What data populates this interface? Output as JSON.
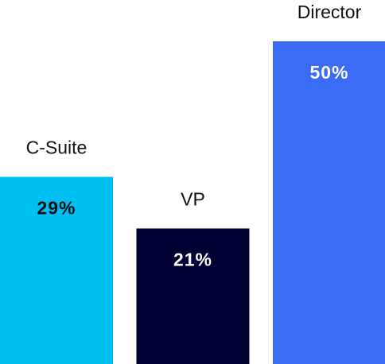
{
  "chart_data": {
    "type": "bar",
    "categories": [
      "C-Suite",
      "VP",
      "Director"
    ],
    "values": [
      29,
      21,
      50
    ],
    "value_labels": [
      "29%",
      "21%",
      "50%"
    ],
    "colors": [
      "#00bff3",
      "#000032",
      "#3c6cf6"
    ]
  }
}
